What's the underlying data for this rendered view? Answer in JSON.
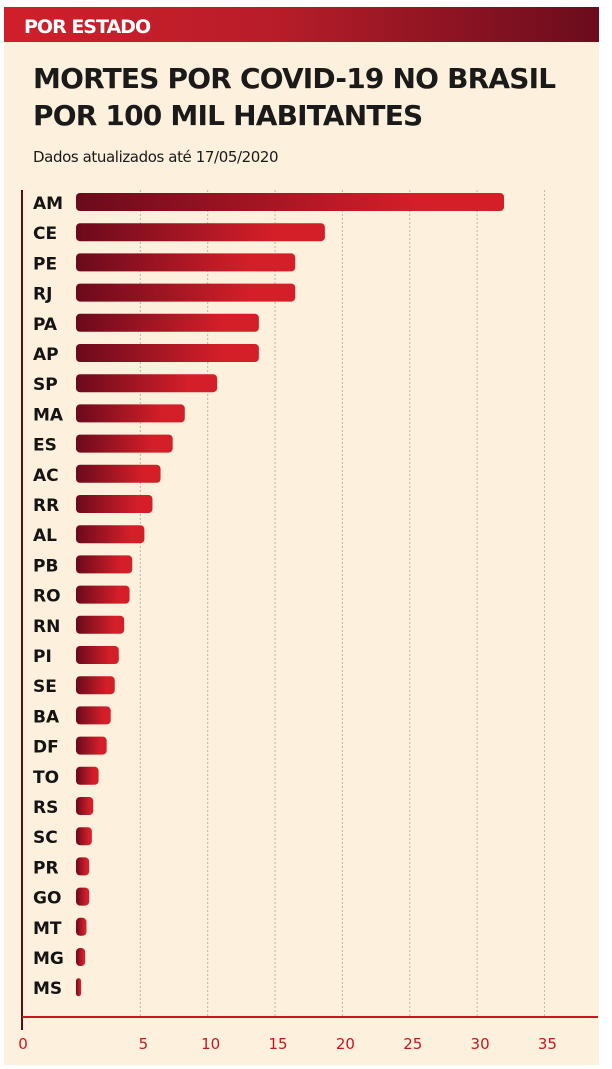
{
  "header": {
    "section_label": "POR ESTADO",
    "title_line1": "MORTES POR COVID-19 NO BRASIL",
    "title_line2": "POR 100 MIL HABITANTES",
    "subtitle": "Dados atualizados até 17/05/2020"
  },
  "colors": {
    "bar_dark": "#6a0a1c",
    "bar_light": "#d41f29",
    "axis": "#c8161f",
    "background": "#fdf0dc",
    "grid": "#bdb5a8"
  },
  "chart_data": {
    "type": "bar",
    "orientation": "horizontal",
    "title": "MORTES POR COVID-19 NO BRASIL POR 100 MIL HABITANTES",
    "subtitle": "Dados atualizados até 17/05/2020",
    "xlabel": "",
    "ylabel": "",
    "categories": [
      "AM",
      "CE",
      "PE",
      "RJ",
      "PA",
      "AP",
      "SP",
      "MA",
      "ES",
      "AC",
      "RR",
      "AL",
      "PB",
      "RO",
      "RN",
      "PI",
      "SE",
      "BA",
      "DF",
      "TO",
      "RS",
      "SC",
      "PR",
      "GO",
      "MT",
      "MG",
      "MS"
    ],
    "values": [
      32.0,
      18.7,
      16.5,
      16.5,
      13.8,
      13.8,
      10.7,
      8.3,
      7.4,
      6.5,
      5.9,
      5.3,
      4.4,
      4.2,
      3.8,
      3.4,
      3.1,
      2.8,
      2.5,
      1.9,
      1.5,
      1.4,
      1.2,
      1.2,
      1.0,
      0.9,
      0.6
    ],
    "xlim": [
      0,
      38
    ],
    "xticks": [
      0,
      5,
      10,
      15,
      20,
      25,
      30,
      35
    ],
    "xtick_labels": [
      "0",
      "5",
      "10",
      "15",
      "20",
      "25",
      "30",
      "35"
    ],
    "grid": true,
    "legend": "none"
  }
}
